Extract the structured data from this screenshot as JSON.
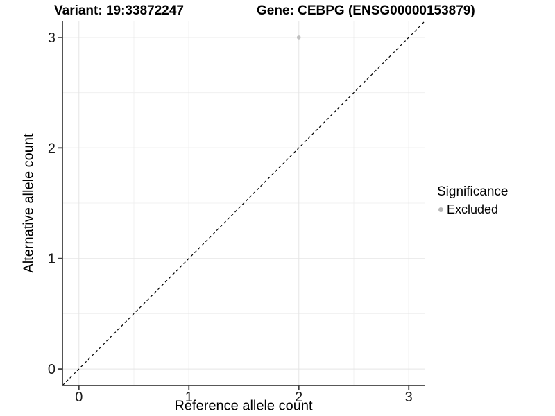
{
  "header": {
    "title_left": "Variant: 19:33872247",
    "title_right": "Gene: CEBPG (ENSG00000153879)"
  },
  "chart_data": {
    "type": "scatter",
    "title_left": "Variant: 19:33872247",
    "title_right": "Gene: CEBPG (ENSG00000153879)",
    "xlabel": "Reference allele count",
    "ylabel": "Alternative allele count",
    "xlim": [
      -0.15,
      3.15
    ],
    "ylim": [
      -0.15,
      3.15
    ],
    "xticks": [
      0,
      1,
      2,
      3
    ],
    "yticks": [
      0,
      1,
      2,
      3
    ],
    "xminor": [
      0.5,
      1.5,
      2.5
    ],
    "yminor": [
      0.5,
      1.5,
      2.5
    ],
    "grid": "on",
    "points": [
      {
        "x": 2,
        "y": 3,
        "series": "Excluded"
      }
    ],
    "reference_line": {
      "kind": "identity y=x",
      "intercept": 0,
      "slope": 1,
      "style": "dashed",
      "color": "#000000"
    },
    "legend": {
      "title": "Significance",
      "position": "right",
      "items": [
        {
          "label": "Excluded",
          "color": "#b8b8b8"
        }
      ]
    },
    "colors": {
      "point": "#c0c0c0",
      "grid_major": "#e5e5e5",
      "grid_minor": "#f0f0f0",
      "axis": "#404040",
      "text": "#1a1a1a",
      "background": "#ffffff"
    }
  }
}
